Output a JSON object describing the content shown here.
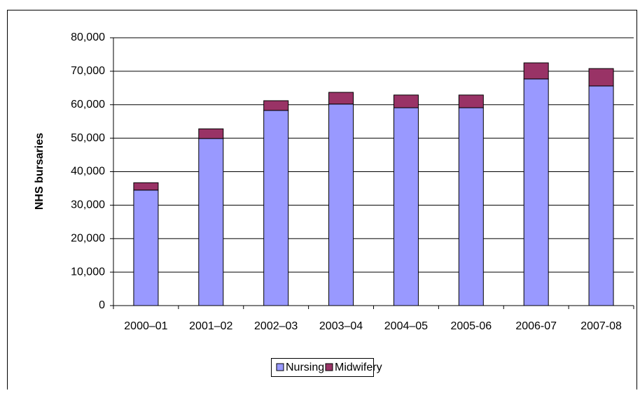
{
  "chart_data": {
    "type": "stacked_bar",
    "y_label": "NHS bursaries",
    "categories": [
      "2000–01",
      "2001–02",
      "2002–03",
      "2003–04",
      "2004–05",
      "2005-06",
      "2006-07",
      "2007-08"
    ],
    "series": [
      {
        "name": "Nursing",
        "color": "#9999ff",
        "values": [
          34500,
          49900,
          58300,
          60200,
          59100,
          59100,
          67700,
          65600
        ]
      },
      {
        "name": "Midwifery",
        "color": "#993366",
        "values": [
          2200,
          2900,
          2900,
          3500,
          3800,
          3800,
          4800,
          5200
        ]
      }
    ],
    "ylim": [
      0,
      80000
    ],
    "yticks": [
      0,
      {
        "value": 10000,
        "label": "10,000"
      },
      {
        "value": 20000,
        "label": "20,000"
      },
      {
        "value": 30000,
        "label": "30,000"
      },
      {
        "value": 40000,
        "label": "40,000"
      },
      {
        "value": 50000,
        "label": "50,000"
      },
      {
        "value": 60000,
        "label": "60,000"
      },
      {
        "value": 70000,
        "label": "70,000"
      },
      {
        "value": 80000,
        "label": "80,000"
      }
    ],
    "grid": true,
    "legend": "bottom"
  }
}
